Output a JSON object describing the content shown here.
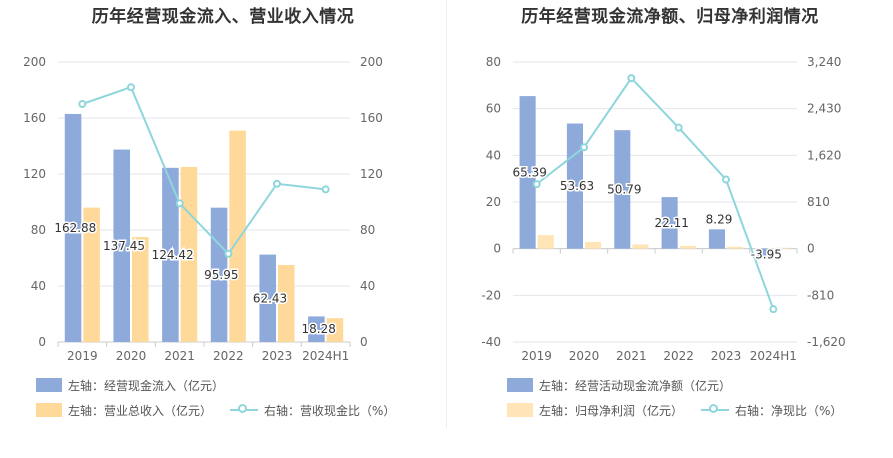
{
  "chart_data": [
    {
      "type": "bar",
      "title": "历年经营现金流入、营业收入情况",
      "categories": [
        "2019",
        "2020",
        "2021",
        "2022",
        "2023",
        "2024H1"
      ],
      "ylim": [
        0,
        200
      ],
      "yticks": [
        0,
        40,
        80,
        120,
        160,
        200
      ],
      "y2lim": [
        0,
        200
      ],
      "y2ticks": [
        0,
        40,
        80,
        120,
        160,
        200
      ],
      "grid": true,
      "legend_placement": "bottom",
      "series": [
        {
          "name": "左轴：经营现金流入（亿元）",
          "kind": "bar",
          "axis": "left",
          "color": "#8eaadb",
          "values": [
            162.88,
            137.45,
            124.42,
            95.95,
            62.43,
            18.28
          ],
          "labels": [
            "162.88",
            "137.45",
            "124.42",
            "95.95",
            "62.43",
            "18.28"
          ]
        },
        {
          "name": "左轴：营业总收入（亿元）",
          "kind": "bar",
          "axis": "left",
          "color": "#ffd99a",
          "values": [
            96,
            75,
            125,
            151,
            55,
            17
          ]
        },
        {
          "name": "右轴：营收现金比（%）",
          "kind": "line",
          "axis": "right",
          "color": "#8fd6dc",
          "values": [
            170,
            182,
            99,
            63,
            113,
            109
          ]
        }
      ]
    },
    {
      "type": "bar",
      "title": "历年经营现金流净额、归母净利润情况",
      "categories": [
        "2019",
        "2020",
        "2021",
        "2022",
        "2023",
        "2024H1"
      ],
      "ylim": [
        -40,
        80
      ],
      "yticks": [
        -40,
        -20,
        0,
        20,
        40,
        60,
        80
      ],
      "y2lim": [
        -1620,
        3240
      ],
      "y2ticks": [
        -1620,
        -810,
        0,
        810,
        1620,
        2430,
        3240
      ],
      "y2ticklabels": [
        "-1,620",
        "-810",
        "0",
        "810",
        "1,620",
        "2,430",
        "3,240"
      ],
      "grid": true,
      "legend_placement": "bottom",
      "series": [
        {
          "name": "左轴：经营活动现金流净额（亿元）",
          "kind": "bar",
          "axis": "left",
          "color": "#8eaadb",
          "values": [
            65.39,
            53.63,
            50.79,
            22.11,
            8.29,
            -3.95
          ],
          "labels": [
            "65.39",
            "53.63",
            "50.79",
            "22.11",
            "8.29",
            "-3.95"
          ]
        },
        {
          "name": "左轴：归母净利润（亿元）",
          "kind": "bar",
          "axis": "left",
          "color": "#ffe4b5",
          "values": [
            5.8,
            2.9,
            1.8,
            1.2,
            0.8,
            0.4
          ]
        },
        {
          "name": "右轴：净现比（%）",
          "kind": "line",
          "axis": "right",
          "color": "#8fd6dc",
          "values": [
            1120,
            1760,
            2960,
            2100,
            1200,
            -1050
          ]
        }
      ]
    }
  ]
}
